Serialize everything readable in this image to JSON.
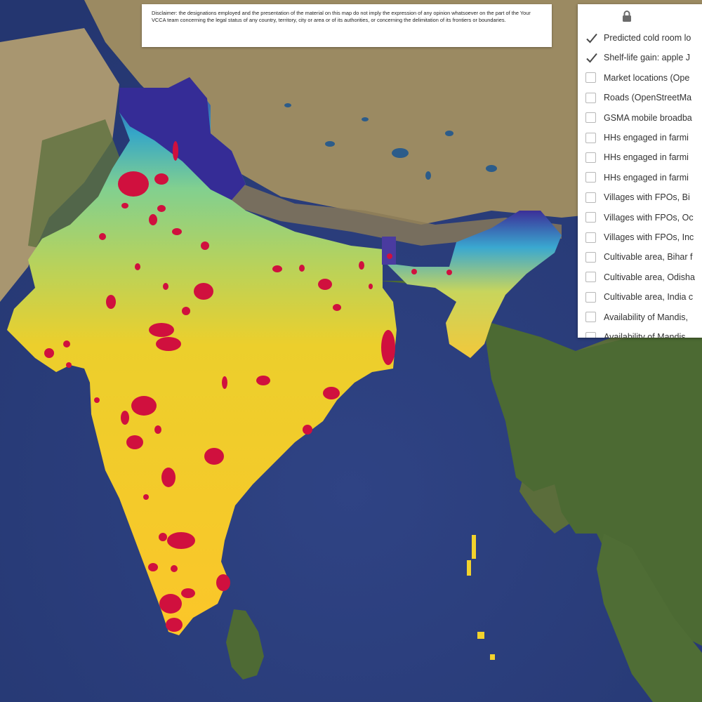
{
  "disclaimer": "Disclaimer: the designations employed and the presentation of the material on this map do not imply the expression of any opinion whatsoever on the part of the Your VCCA team concerning the legal status of any country, territory, city or area or of its authorities, or concerning the delimitation of its frontiers or boundaries.",
  "layers_panel": {
    "lock_icon": "lock-icon",
    "layers": [
      {
        "label": "Predicted cold room lo",
        "checked": true
      },
      {
        "label": "Shelf-life gain: apple J",
        "checked": true
      },
      {
        "label": "Market locations (Ope",
        "checked": false
      },
      {
        "label": "Roads (OpenStreetMa",
        "checked": false
      },
      {
        "label": "GSMA mobile broadba",
        "checked": false
      },
      {
        "label": "HHs engaged in farmi",
        "checked": false
      },
      {
        "label": "HHs engaged in farmi",
        "checked": false
      },
      {
        "label": "HHs engaged in farmi",
        "checked": false
      },
      {
        "label": "Villages with FPOs, Bi",
        "checked": false
      },
      {
        "label": "Villages with FPOs, Oc",
        "checked": false
      },
      {
        "label": "Villages with FPOs, Inc",
        "checked": false
      },
      {
        "label": "Cultivable area, Bihar f",
        "checked": false
      },
      {
        "label": "Cultivable area, Odisha",
        "checked": false
      },
      {
        "label": "Cultivable area, India c",
        "checked": false
      },
      {
        "label": "Availability of Mandis,",
        "checked": false
      },
      {
        "label": "Availability of Mandis",
        "checked": false
      }
    ]
  },
  "colors": {
    "ocean": "#2c407e",
    "land": "#4f6a35",
    "highland": "#9a8a63",
    "heat_high": "#f7c52a",
    "heat_mid": "#8fcf85",
    "heat_low": "#32289a",
    "cold_room_marker": "#d0103e"
  }
}
